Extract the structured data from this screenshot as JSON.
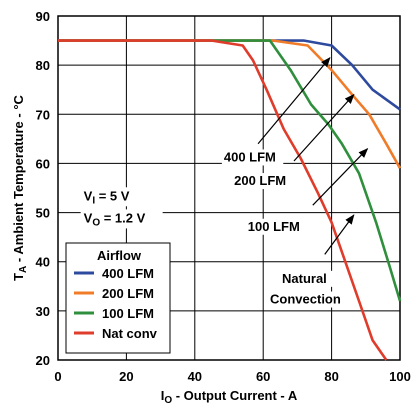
{
  "chart_data": {
    "type": "line",
    "xlabel": {
      "main": "I",
      "sub": "O",
      "rest": " - Output Current - A"
    },
    "ylabel": {
      "main": "T",
      "sub": "A",
      "rest": " - Ambient Temperature - °C"
    },
    "xlim": [
      0,
      100
    ],
    "ylim": [
      20,
      90
    ],
    "xticks": [
      0,
      20,
      40,
      60,
      80,
      100
    ],
    "yticks": [
      20,
      30,
      40,
      50,
      60,
      70,
      80,
      90
    ],
    "grid": true,
    "legend": {
      "title": "Airflow",
      "placement": "bottom-left",
      "entries": [
        "400 LFM",
        "200 LFM",
        "100 LFM",
        "Nat conv"
      ]
    },
    "series": [
      {
        "name": "400 LFM",
        "color": "#2e4a9e",
        "points": [
          [
            0,
            85
          ],
          [
            65,
            85
          ],
          [
            72,
            85
          ],
          [
            80,
            84
          ],
          [
            86,
            80
          ],
          [
            92,
            75
          ],
          [
            100,
            71
          ]
        ]
      },
      {
        "name": "200 LFM",
        "color": "#f07c2a",
        "points": [
          [
            0,
            85
          ],
          [
            63,
            85
          ],
          [
            73,
            84
          ],
          [
            80,
            79
          ],
          [
            86,
            74
          ],
          [
            91,
            70
          ],
          [
            96,
            64
          ],
          [
            100,
            59
          ]
        ]
      },
      {
        "name": "100 LFM",
        "color": "#2f8f3c",
        "points": [
          [
            0,
            85
          ],
          [
            62,
            85
          ],
          [
            68,
            79
          ],
          [
            74,
            72
          ],
          [
            79,
            68
          ],
          [
            83,
            64
          ],
          [
            88,
            58
          ],
          [
            93,
            48
          ],
          [
            97,
            39
          ],
          [
            100,
            32
          ]
        ]
      },
      {
        "name": "Nat conv",
        "color": "#e03c2b",
        "points": [
          [
            0,
            85
          ],
          [
            45,
            85
          ],
          [
            54,
            84
          ],
          [
            57,
            81
          ],
          [
            61,
            75
          ],
          [
            66,
            67
          ],
          [
            71,
            61
          ],
          [
            76,
            54
          ],
          [
            80,
            48
          ],
          [
            84,
            40
          ],
          [
            88,
            32
          ],
          [
            92,
            24
          ],
          [
            96,
            20
          ]
        ]
      }
    ],
    "annotations": [
      {
        "text": "400 LFM",
        "at": [
          48.5,
          60.4
        ],
        "arrow_from": [
          58.5,
          64.0
        ],
        "arrow_to": [
          79.5,
          81.5
        ]
      },
      {
        "text": "200 LFM",
        "at": [
          51.5,
          55.6
        ],
        "arrow_from": [
          69.0,
          60.5
        ],
        "arrow_to": [
          86.5,
          74.0
        ]
      },
      {
        "text": "100 LFM",
        "at": [
          55.5,
          46.3
        ],
        "arrow_from": [
          74.5,
          51.5
        ],
        "arrow_to": [
          90.5,
          63.0
        ]
      },
      {
        "text": "Natural",
        "at": [
          65.5,
          35.7
        ],
        "arrow_from": [
          78.0,
          41.5
        ],
        "arrow_to": [
          86.5,
          49.5
        ]
      },
      {
        "text": "Convection",
        "at": [
          62.0,
          31.5
        ]
      }
    ],
    "conditions": [
      {
        "main": "V",
        "sub": "I",
        "rest": " = 5 V",
        "at": [
          7.5,
          52.5
        ]
      },
      {
        "main": "V",
        "sub": "O",
        "rest": " = 1.2 V",
        "at": [
          7.5,
          48.0
        ]
      }
    ]
  }
}
